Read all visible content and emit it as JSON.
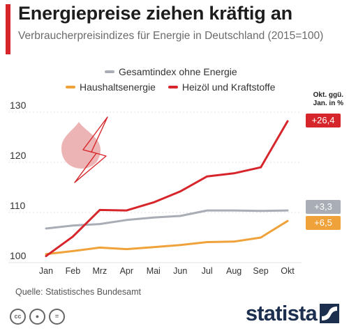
{
  "header": {
    "title": "Energiepreise ziehen kräftig an",
    "subtitle": "Verbraucherpreisindizes für Energie in Deutschland (2015=100)"
  },
  "legend": {
    "items": [
      {
        "label": "Gesamtindex ohne Energie",
        "color": "#a9adb5"
      },
      {
        "label": "Haushaltsenergie",
        "color": "#f0a23a"
      },
      {
        "label": "Heizöl und Kraftstoffe",
        "color": "#d7262b"
      }
    ]
  },
  "change_header": {
    "line1": "Okt. ggü.",
    "line2": "Jan. in %"
  },
  "badges": {
    "heizoel": "+26,4",
    "gesamt": "+3,3",
    "haushalt": "+6,5"
  },
  "icons": {
    "decoration": "lightning-drop-icon",
    "license": [
      "cc-icon",
      "by-icon",
      "nd-icon"
    ]
  },
  "chart_data": {
    "type": "line",
    "categories": [
      "Jan",
      "Feb",
      "Mrz",
      "Apr",
      "Mai",
      "Jun",
      "Jul",
      "Aug",
      "Sep",
      "Okt"
    ],
    "series": [
      {
        "name": "Gesamtindex ohne Energie",
        "color": "#a9adb5",
        "values": [
          106.8,
          107.4,
          107.7,
          108.5,
          109.0,
          109.3,
          110.4,
          110.4,
          110.3,
          110.4
        ]
      },
      {
        "name": "Haushaltsenergie",
        "color": "#f0a23a",
        "values": [
          101.7,
          102.3,
          103.0,
          102.7,
          103.1,
          103.5,
          104.1,
          104.2,
          105.0,
          108.3
        ]
      },
      {
        "name": "Heizöl und Kraftstoffe",
        "color": "#d7262b",
        "values": [
          101.3,
          105.2,
          110.5,
          110.4,
          112.0,
          114.2,
          117.2,
          117.8,
          119.0,
          128.2
        ]
      }
    ],
    "yticks": [
      100,
      110,
      120,
      130
    ],
    "ylim": [
      100,
      130
    ],
    "grid": true
  },
  "footer": {
    "source": "Quelle: Statistisches Bundesamt",
    "logo": "statista"
  }
}
